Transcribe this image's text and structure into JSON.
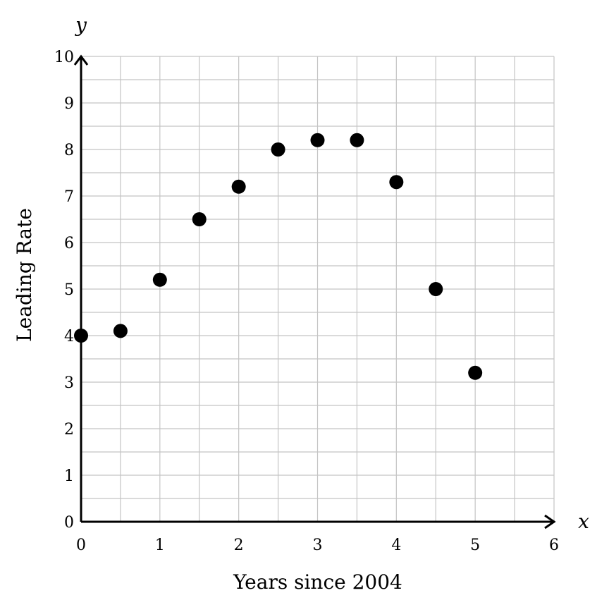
{
  "chart_data": {
    "type": "scatter",
    "xlabel": "Years since 2004",
    "ylabel": "Leading Rate",
    "x_axis_letter": "x",
    "y_axis_letter": "y",
    "xlim": [
      0,
      6
    ],
    "ylim": [
      0,
      10
    ],
    "x_ticks": [
      "0",
      "1",
      "2",
      "3",
      "4",
      "5",
      "6"
    ],
    "y_ticks": [
      "0",
      "1",
      "2",
      "3",
      "4",
      "5",
      "6",
      "7",
      "8",
      "9",
      "10"
    ],
    "x_minor_step": 0.5,
    "y_minor_step": 0.5,
    "grid": true,
    "point_color": "#000000",
    "points": [
      {
        "x": 0,
        "y": 4.0
      },
      {
        "x": 0.5,
        "y": 4.1
      },
      {
        "x": 1,
        "y": 5.2
      },
      {
        "x": 1.5,
        "y": 6.5
      },
      {
        "x": 2,
        "y": 7.2
      },
      {
        "x": 2.5,
        "y": 8.0
      },
      {
        "x": 3,
        "y": 8.2
      },
      {
        "x": 3.5,
        "y": 8.2
      },
      {
        "x": 4,
        "y": 7.3
      },
      {
        "x": 4.5,
        "y": 5.0
      },
      {
        "x": 5,
        "y": 3.2
      }
    ]
  }
}
